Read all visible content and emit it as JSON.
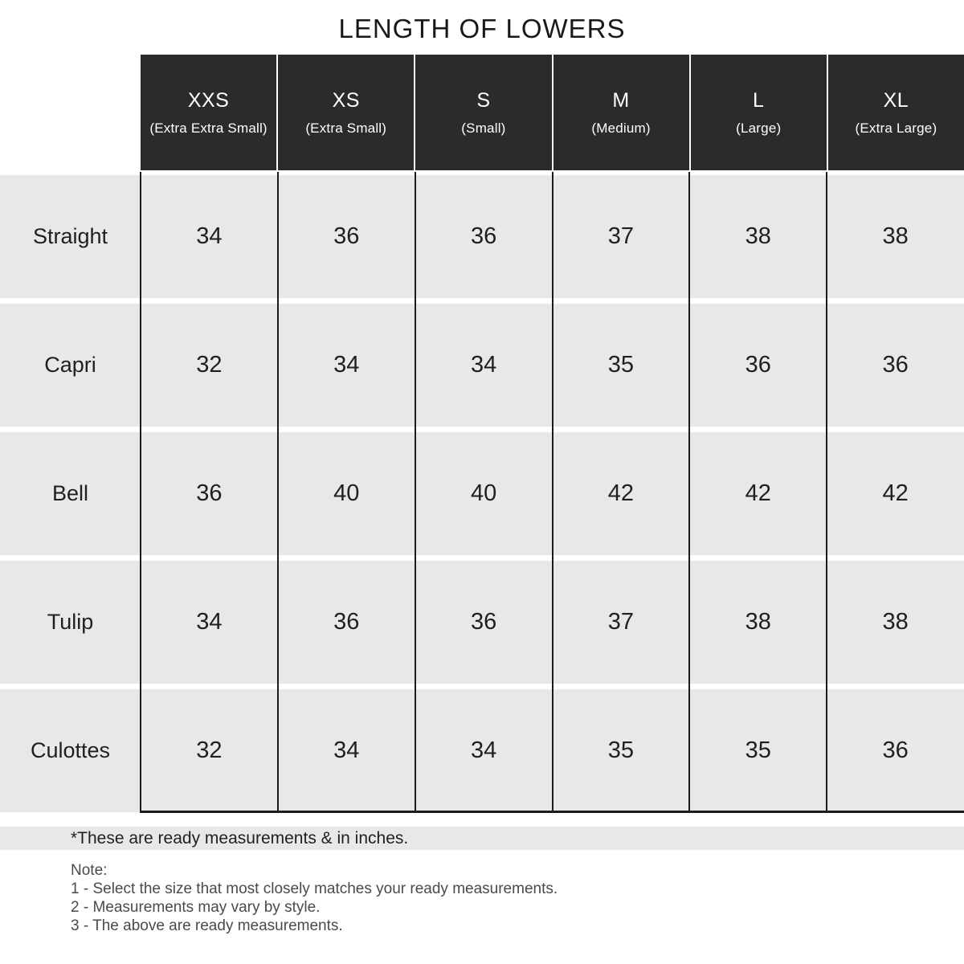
{
  "title": "LENGTH OF LOWERS",
  "table": {
    "columns": [
      {
        "size": "XXS",
        "full": "(Extra Extra Small)"
      },
      {
        "size": "XS",
        "full": "(Extra Small)"
      },
      {
        "size": "S",
        "full": "(Small)"
      },
      {
        "size": "M",
        "full": "(Medium)"
      },
      {
        "size": "L",
        "full": "(Large)"
      },
      {
        "size": "XL",
        "full": "(Extra Large)"
      }
    ],
    "rows": [
      {
        "label": "Straight",
        "values": [
          34,
          36,
          36,
          37,
          38,
          38
        ]
      },
      {
        "label": "Capri",
        "values": [
          32,
          34,
          34,
          35,
          36,
          36
        ]
      },
      {
        "label": "Bell",
        "values": [
          36,
          40,
          40,
          42,
          42,
          42
        ]
      },
      {
        "label": "Tulip",
        "values": [
          34,
          36,
          36,
          37,
          38,
          38
        ]
      },
      {
        "label": "Culottes",
        "values": [
          32,
          34,
          34,
          35,
          35,
          36
        ]
      }
    ]
  },
  "footnote": "*These are ready measurements & in inches.",
  "notes": {
    "heading": "Note:",
    "items": [
      "1 - Select the size that most closely matches your ready measurements.",
      "2 - Measurements may vary by style.",
      "3 - The above are ready measurements."
    ]
  },
  "colors": {
    "header_bg": "#2b2b2b",
    "row_bg": "#e9e8e8",
    "border": "#1c1c1c",
    "header_text": "#ffffff",
    "body_text": "#1f1f1f",
    "note_text": "#4a4a4a"
  },
  "chart_data": {
    "type": "table",
    "title": "LENGTH OF LOWERS",
    "units": "inches",
    "columns": [
      "XXS (Extra Extra Small)",
      "XS (Extra Small)",
      "S (Small)",
      "M (Medium)",
      "L (Large)",
      "XL (Extra Large)"
    ],
    "categories": [
      "Straight",
      "Capri",
      "Bell",
      "Tulip",
      "Culottes"
    ],
    "series": [
      {
        "name": "Straight",
        "values": [
          34,
          36,
          36,
          37,
          38,
          38
        ]
      },
      {
        "name": "Capri",
        "values": [
          32,
          34,
          34,
          35,
          36,
          36
        ]
      },
      {
        "name": "Bell",
        "values": [
          36,
          40,
          40,
          42,
          42,
          42
        ]
      },
      {
        "name": "Tulip",
        "values": [
          34,
          36,
          36,
          37,
          38,
          38
        ]
      },
      {
        "name": "Culottes",
        "values": [
          32,
          34,
          34,
          35,
          35,
          36
        ]
      }
    ]
  }
}
